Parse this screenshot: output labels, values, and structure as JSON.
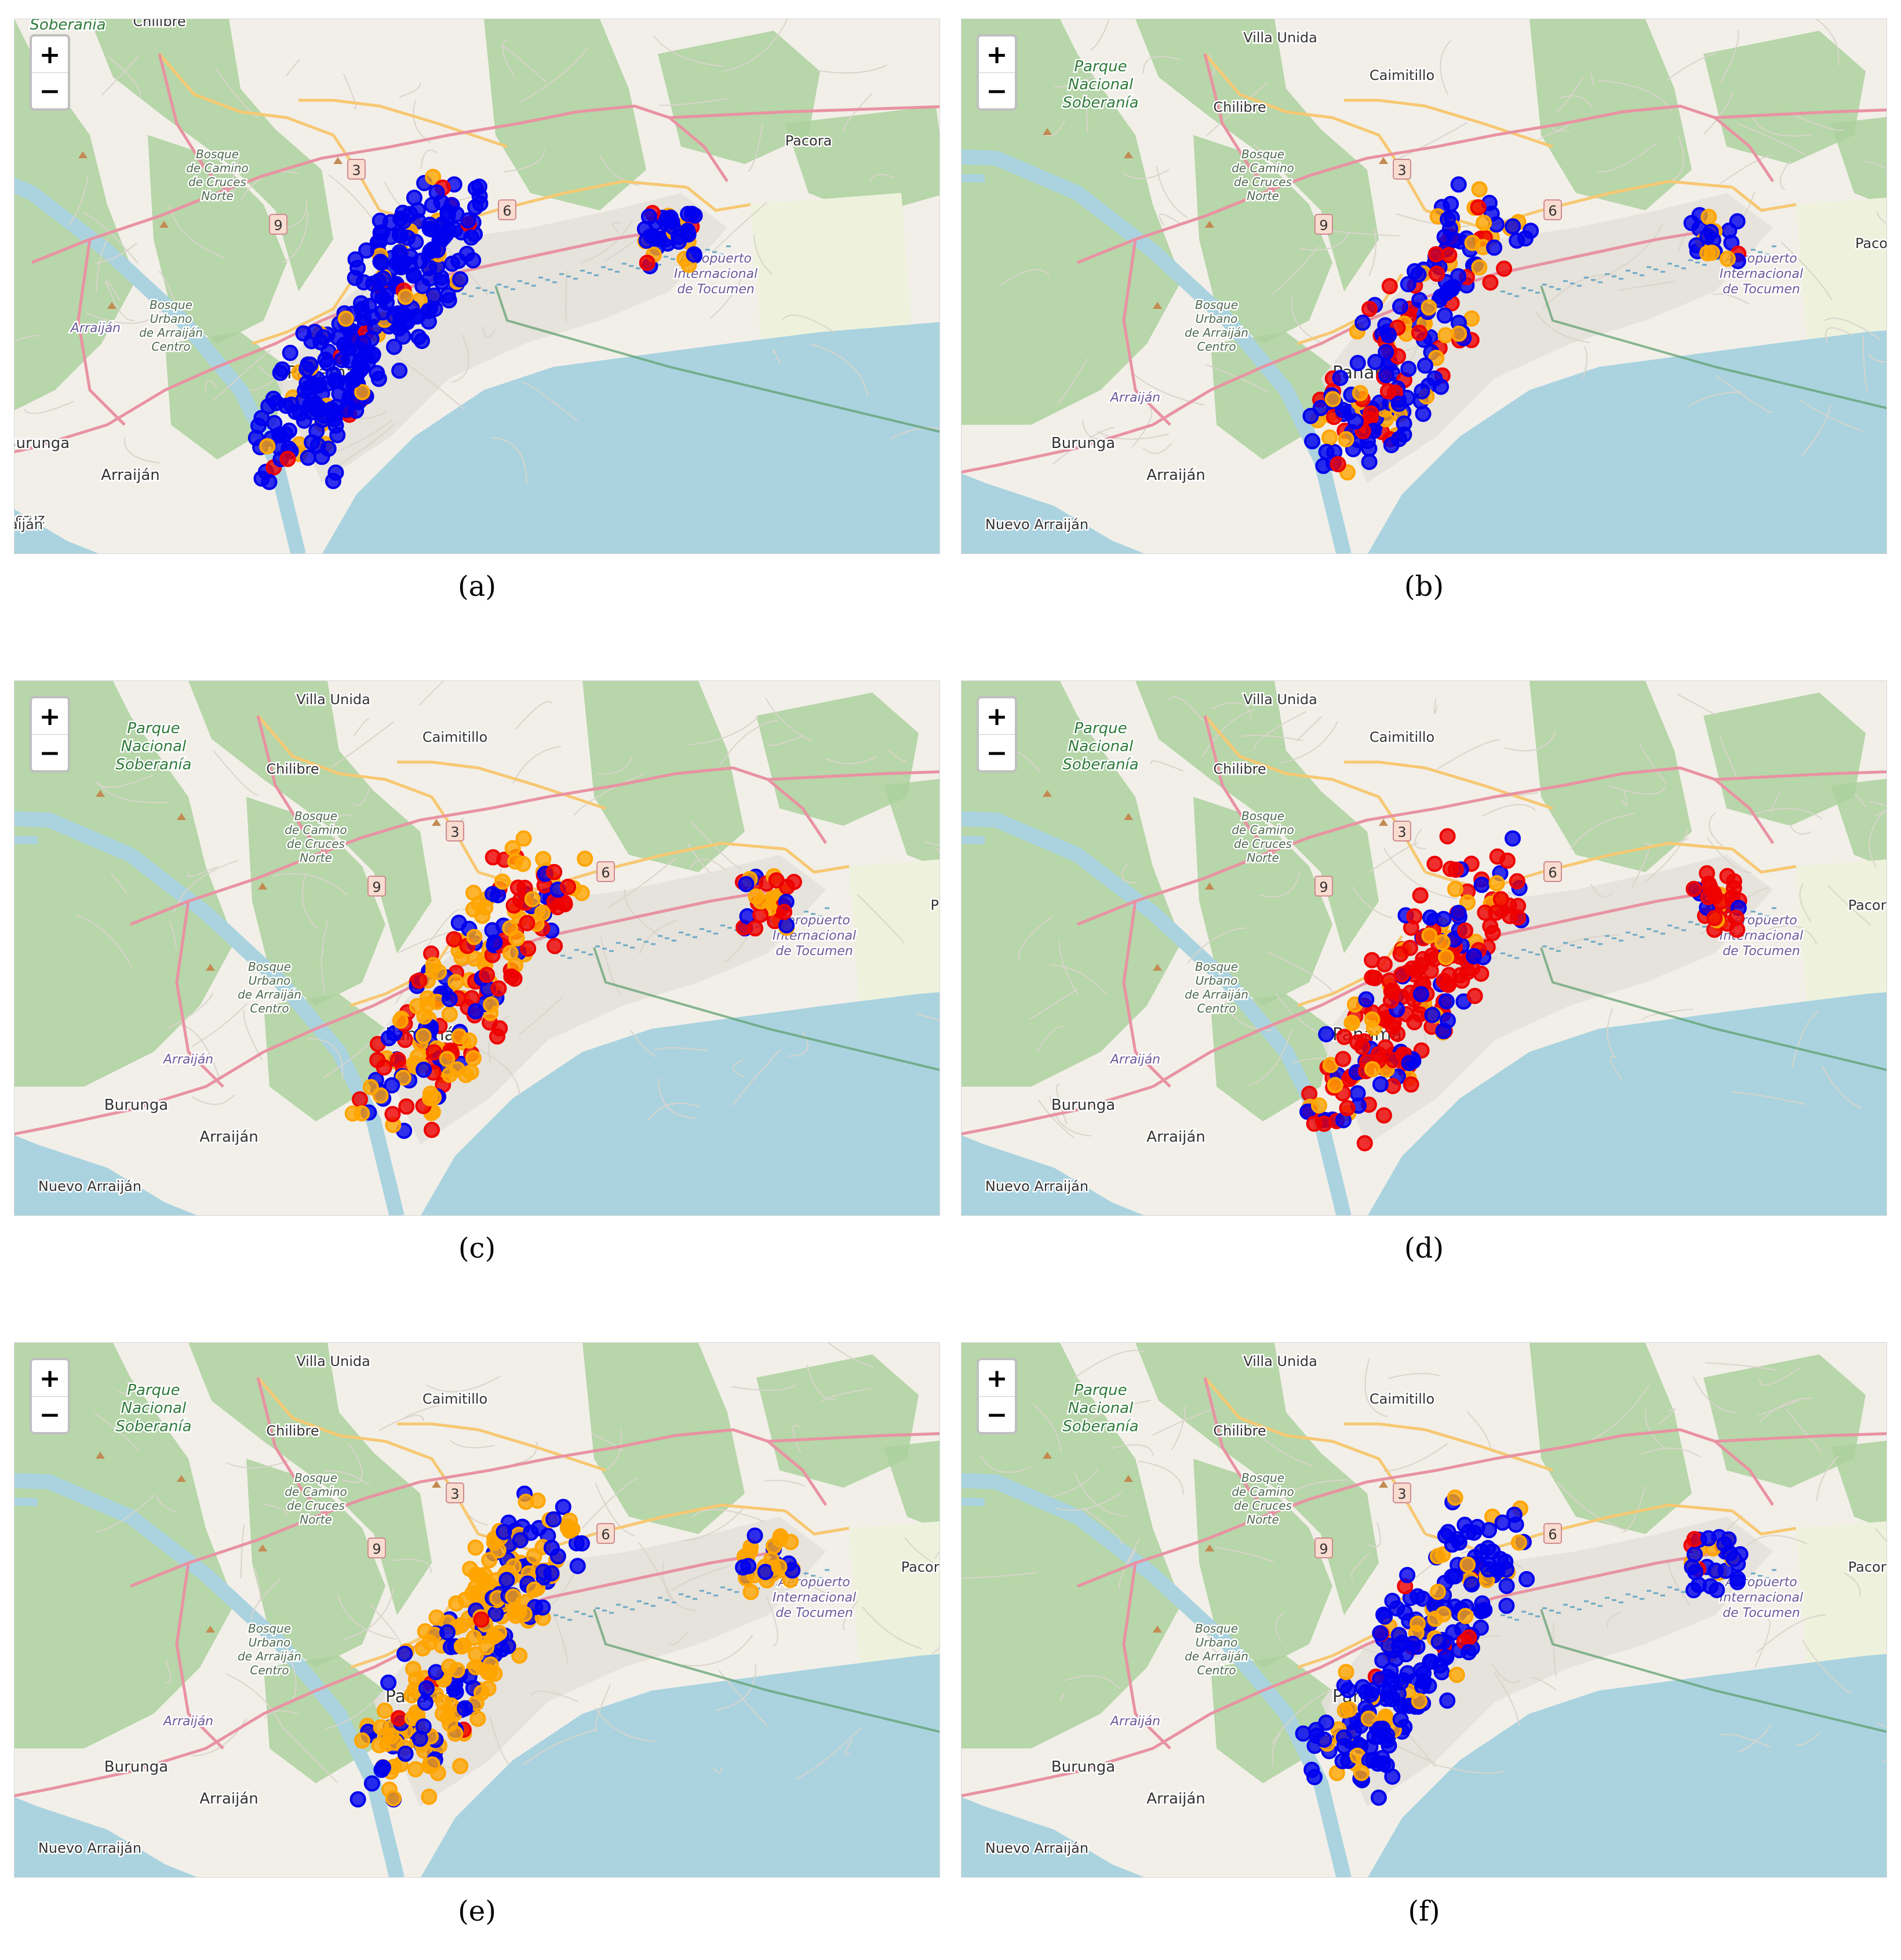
{
  "zoom_controls": {
    "zoom_in": "+",
    "zoom_out": "−"
  },
  "colors": {
    "water": "#aad3df",
    "land": "#f2efe9",
    "forest": "#add19e",
    "park": "#c8e6b9",
    "urban": "#e4e0da",
    "primary_road": "#e892a2",
    "secondary_road": "#f7c872",
    "minor_road": "#ffffff",
    "marker_blue": "#0000ee",
    "marker_orange": "#ffa500",
    "marker_red": "#ee0000"
  },
  "place_labels": {
    "soberania": [
      "Parque",
      "Nacional",
      "Soberanía"
    ],
    "soberania_clip": "Soberanía",
    "chilibre": "Chilibre",
    "villa_unida": "Villa Unida",
    "caimitillo": "Caimitillo",
    "pacora": "Pacora",
    "pacora_clip": "Paco",
    "pacora_clip2": "P",
    "camino_cruces": [
      "Bosque",
      "de Camino",
      "de Cruces",
      "Norte"
    ],
    "arraijan_park": [
      "Bosque",
      "Urbano",
      "de Arraiján",
      "Centro"
    ],
    "arraijan_italic": "Arraiján",
    "burunga": "Burunga",
    "arraijan": "Arraiján",
    "nuevo_arraijan": "Nuevo Arraiján",
    "veracruz": "Veracruz",
    "airport": [
      "Aeropuerto",
      "Internacional",
      "de Tocumen"
    ],
    "panama": "Panamá"
  },
  "route_shields": {
    "r3": "3",
    "r6": "6",
    "r9": "9"
  },
  "panels": [
    {
      "id": "a",
      "caption": "(a)",
      "view": "west",
      "markers": {
        "city_blue": 260,
        "city_orange": 28,
        "city_red": 12,
        "airport_blue": 30,
        "airport_orange": 8,
        "airport_red": 3
      }
    },
    {
      "id": "b",
      "caption": "(b)",
      "view": "east",
      "markers": {
        "city_blue": 110,
        "city_orange": 40,
        "city_red": 45,
        "airport_blue": 14,
        "airport_orange": 6,
        "airport_red": 1
      }
    },
    {
      "id": "c",
      "caption": "(c)",
      "view": "east",
      "markers": {
        "city_blue": 55,
        "city_orange": 95,
        "city_red": 75,
        "airport_blue": 6,
        "airport_orange": 12,
        "airport_red": 14
      }
    },
    {
      "id": "d",
      "caption": "(d)",
      "view": "east",
      "markers": {
        "city_blue": 50,
        "city_orange": 30,
        "city_red": 135,
        "airport_blue": 6,
        "airport_orange": 4,
        "airport_red": 24
      }
    },
    {
      "id": "e",
      "caption": "(e)",
      "view": "east",
      "markers": {
        "city_blue": 90,
        "city_orange": 170,
        "city_red": 4,
        "airport_blue": 10,
        "airport_orange": 22,
        "airport_red": 0
      }
    },
    {
      "id": "f",
      "caption": "(f)",
      "view": "east",
      "markers": {
        "city_blue": 180,
        "city_orange": 45,
        "city_red": 8,
        "airport_blue": 22,
        "airport_orange": 6,
        "airport_red": 4
      }
    }
  ]
}
